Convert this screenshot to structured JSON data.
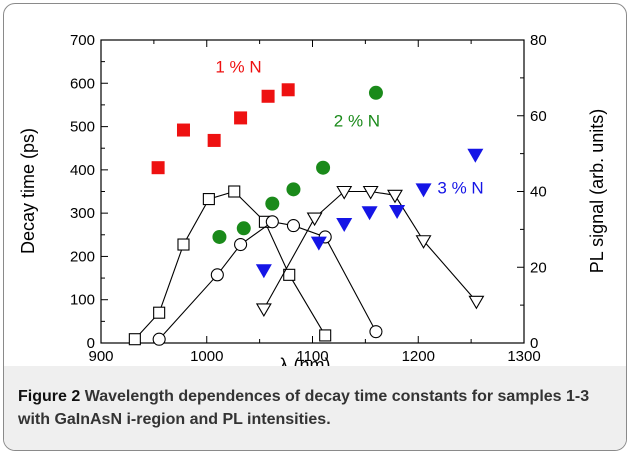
{
  "caption": {
    "label": "Figure 2",
    "text": "Wavelength dependences of decay time constants for samples 1-3 with GaInAsN i-region and PL intensities."
  },
  "chart_data": {
    "type": "scatter",
    "xlabel": "λ (nm)",
    "ylabel": "Decay time (ps)",
    "y2label": "PL signal (arb. units)",
    "xlim": [
      900,
      1300
    ],
    "ylim": [
      0,
      700
    ],
    "y2lim": [
      0,
      80
    ],
    "xticks": [
      "900",
      "1000",
      "1100",
      "1200",
      "1300"
    ],
    "yticks": [
      "0",
      "100",
      "200",
      "300",
      "400",
      "500",
      "600",
      "700"
    ],
    "y2ticks": [
      "0",
      "20",
      "40",
      "60",
      "80"
    ],
    "grid": false,
    "colors": {
      "red": "#ee1111",
      "green": "#1a8a1a",
      "blue": "#1515e6",
      "black": "#000000"
    },
    "annotations": [
      {
        "text": "1 % N",
        "color": "#ee1111",
        "x": 1030,
        "y": 625
      },
      {
        "text": "2 % N",
        "color": "#1a8a1a",
        "x": 1142,
        "y": 500
      },
      {
        "text": "3 % N",
        "color": "#1515e6",
        "x": 1240,
        "y": 345
      }
    ],
    "decay_series": [
      {
        "label": "1 % N",
        "marker": "square",
        "color": "#ee1111",
        "axis": "left",
        "x": [
          954,
          978,
          1007,
          1032,
          1058,
          1077
        ],
        "y": [
          405,
          492,
          468,
          520,
          570,
          585
        ]
      },
      {
        "label": "2 % N",
        "marker": "circle",
        "color": "#1a8a1a",
        "axis": "left",
        "x": [
          1012,
          1035,
          1062,
          1082,
          1110,
          1160
        ],
        "y": [
          245,
          265,
          322,
          355,
          405,
          578
        ]
      },
      {
        "label": "3 % N",
        "marker": "triangle-down",
        "color": "#1515e6",
        "axis": "left",
        "x": [
          1054,
          1106,
          1130,
          1154,
          1180,
          1205,
          1254
        ],
        "y": [
          168,
          232,
          275,
          302,
          305,
          355,
          435
        ]
      }
    ],
    "pl_series": [
      {
        "label": "1 % N",
        "marker": "open-square",
        "axis": "right",
        "x": [
          932,
          955,
          978,
          1002,
          1026,
          1055,
          1078,
          1112
        ],
        "y": [
          1,
          8,
          26,
          38,
          40,
          32,
          18,
          2
        ]
      },
      {
        "label": "2 % N",
        "marker": "open-circle",
        "axis": "right",
        "x": [
          955,
          1010,
          1032,
          1062,
          1082,
          1112,
          1160
        ],
        "y": [
          1,
          18,
          26,
          32,
          31,
          28,
          3
        ]
      },
      {
        "label": "3 % N",
        "marker": "open-triangle-down",
        "axis": "right",
        "x": [
          1054,
          1102,
          1130,
          1155,
          1178,
          1205,
          1255
        ],
        "y": [
          9,
          33,
          40,
          40,
          39,
          27,
          11
        ]
      }
    ]
  }
}
